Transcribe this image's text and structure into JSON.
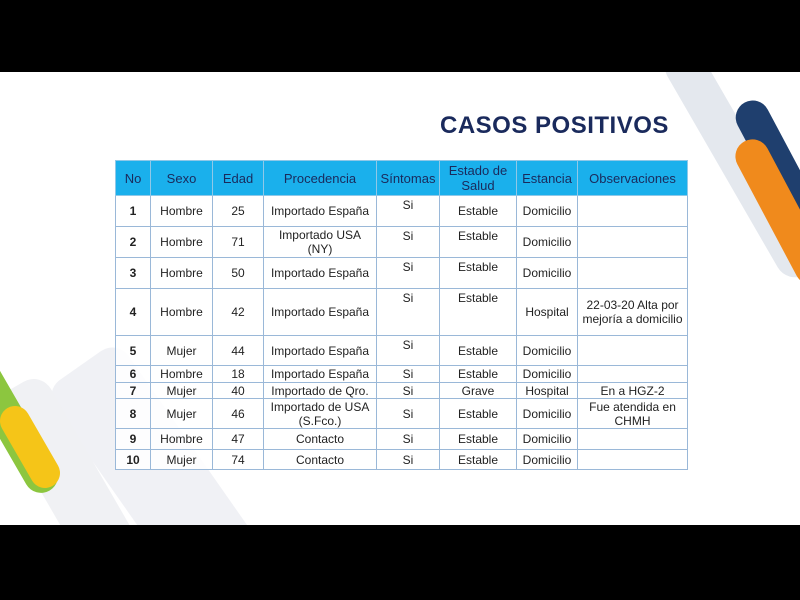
{
  "title": "CASOS POSITIVOS",
  "headers": [
    "No",
    "Sexo",
    "Edad",
    "Procedencia",
    "Síntomas",
    "Estado de Salud",
    "Estancia",
    "Observaciones"
  ],
  "rows": [
    [
      "1",
      "Hombre",
      "25",
      "Importado España",
      "Si",
      "Estable",
      "Domicilio",
      ""
    ],
    [
      "2",
      "Hombre",
      "71",
      "Importado USA (NY)",
      "Si",
      "Estable",
      "Domicilio",
      ""
    ],
    [
      "3",
      "Hombre",
      "50",
      "Importado España",
      "Si",
      "Estable",
      "Domicilio",
      ""
    ],
    [
      "4",
      "Hombre",
      "42",
      "Importado España",
      "Si",
      "Estable",
      "Hospital",
      "22-03-20 Alta por mejoría a domicilio"
    ],
    [
      "5",
      "Mujer",
      "44",
      "Importado España",
      "Si",
      "Estable",
      "Domicilio",
      ""
    ],
    [
      "6",
      "Hombre",
      "18",
      "Importado España",
      "Si",
      "Estable",
      "Domicilio",
      ""
    ],
    [
      "7",
      "Mujer",
      "40",
      "Importado de Qro.",
      "Si",
      "Grave",
      "Hospital",
      "En a HGZ-2"
    ],
    [
      "8",
      "Mujer",
      "46",
      "Importado de USA (S.Fco.)",
      "Si",
      "Estable",
      "Domicilio",
      "Fue atendida en CHMH"
    ],
    [
      "9",
      "Hombre",
      "47",
      "Contacto",
      "Si",
      "Estable",
      "Domicilio",
      ""
    ],
    [
      "10",
      "Mujer",
      "74",
      "Contacto",
      "Si",
      "Estable",
      "Domicilio",
      ""
    ]
  ],
  "colors": {
    "header": "#1ab0ec",
    "title": "#1a2a5c",
    "accent_navy": "#1f3f6e",
    "accent_orange": "#f08a1c",
    "accent_green": "#8cc63f",
    "accent_yellow": "#f5c518"
  }
}
